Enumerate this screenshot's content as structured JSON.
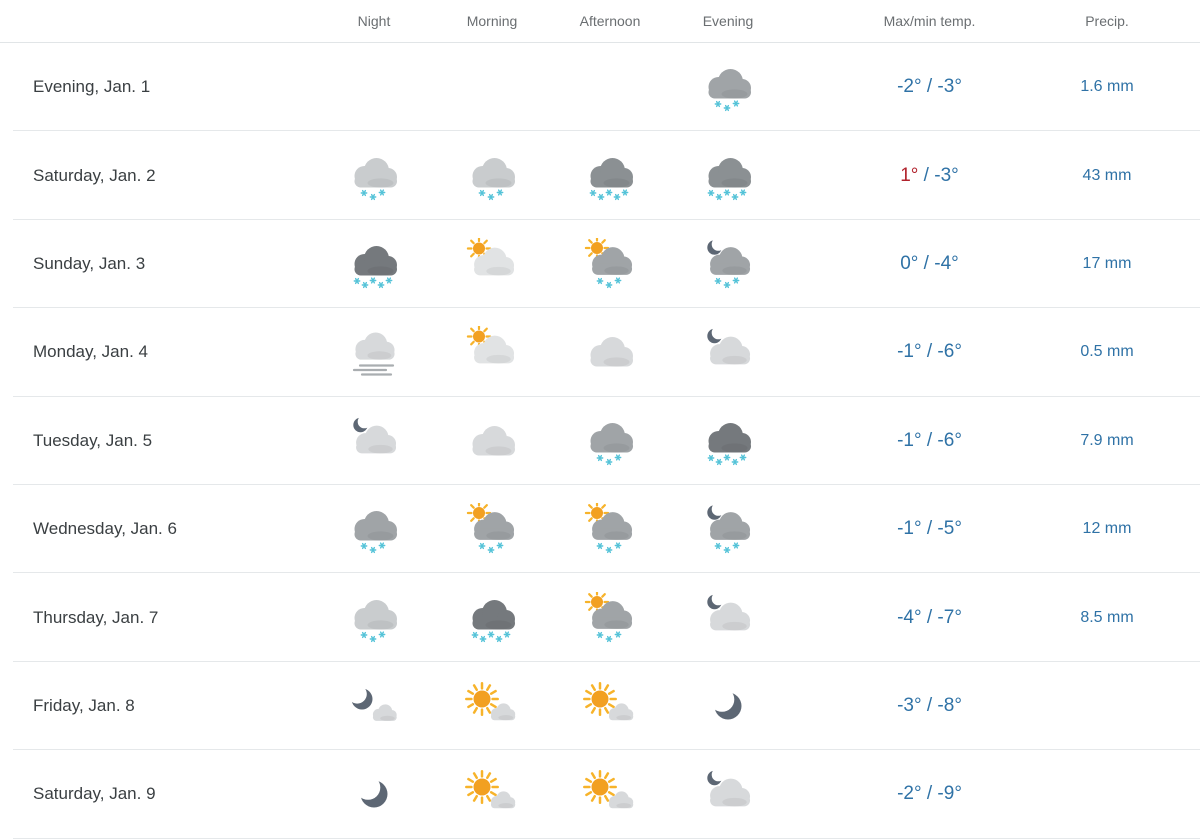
{
  "table": {
    "columns": [
      {
        "key": "day",
        "label": ""
      },
      {
        "key": "night",
        "label": "Night"
      },
      {
        "key": "morning",
        "label": "Morning"
      },
      {
        "key": "afternoon",
        "label": "Afternoon"
      },
      {
        "key": "evening",
        "label": "Evening"
      },
      {
        "key": "temp",
        "label": "Max/min temp."
      },
      {
        "key": "precip",
        "label": "Precip."
      }
    ],
    "temp_separator": " / ",
    "rows": [
      {
        "day": "Evening, Jan. 1",
        "night": null,
        "morning": null,
        "afternoon": null,
        "evening": "snow-med",
        "temp_max": "-2°",
        "temp_min": "-3°",
        "precip": "1.6 mm"
      },
      {
        "day": "Saturday, Jan. 2",
        "night": "snow-light",
        "morning": "snow-light",
        "afternoon": "snow-dark",
        "evening": "snow-dark",
        "temp_max": "1°",
        "temp_min": "-3°",
        "precip": "43 mm"
      },
      {
        "day": "Sunday, Jan. 3",
        "night": "snow-heavy",
        "morning": "sun-cloud",
        "afternoon": "sun-snow",
        "evening": "moon-snow",
        "temp_max": "0°",
        "temp_min": "-4°",
        "precip": "17 mm"
      },
      {
        "day": "Monday, Jan. 4",
        "night": "fog",
        "morning": "sun-cloud",
        "afternoon": "cloudy",
        "evening": "moon-cloud",
        "temp_max": "-1°",
        "temp_min": "-6°",
        "precip": "0.5 mm"
      },
      {
        "day": "Tuesday, Jan. 5",
        "night": "moon-cloud",
        "morning": "cloudy",
        "afternoon": "snow-med",
        "evening": "snow-heavy",
        "temp_max": "-1°",
        "temp_min": "-6°",
        "precip": "7.9 mm"
      },
      {
        "day": "Wednesday, Jan. 6",
        "night": "snow-med",
        "morning": "sun-snow",
        "afternoon": "sun-snow",
        "evening": "moon-snow",
        "temp_max": "-1°",
        "temp_min": "-5°",
        "precip": "12 mm"
      },
      {
        "day": "Thursday, Jan. 7",
        "night": "snow-light",
        "morning": "snow-heavy",
        "afternoon": "sun-snow",
        "evening": "moon-cloud",
        "temp_max": "-4°",
        "temp_min": "-7°",
        "precip": "8.5 mm"
      },
      {
        "day": "Friday, Jan. 8",
        "night": "fair-night",
        "morning": "fair-day",
        "afternoon": "fair-day",
        "evening": "clear-night",
        "temp_max": "-3°",
        "temp_min": "-8°",
        "precip": ""
      },
      {
        "day": "Saturday, Jan. 9",
        "night": "clear-night",
        "morning": "fair-day",
        "afternoon": "fair-day",
        "evening": "moon-cloud",
        "temp_max": "-2°",
        "temp_min": "-9°",
        "precip": ""
      }
    ]
  },
  "colors": {
    "temp_cold": "#2f72a6",
    "temp_warm": "#b1232d",
    "snowflake": "#55c3d8",
    "sun_core": "#f2a021",
    "sun_rays": "#f7b32a",
    "moon": "#5d6774",
    "cloud_light": "#c9ccce",
    "cloud_med": "#a0a4a7",
    "cloud_dark": "#8b9093",
    "cloud_heavy": "#75797d",
    "cloud_pale": "#d7d9db",
    "cloud_white": "#e1e3e4",
    "fog_lines": "#a9adb0"
  }
}
